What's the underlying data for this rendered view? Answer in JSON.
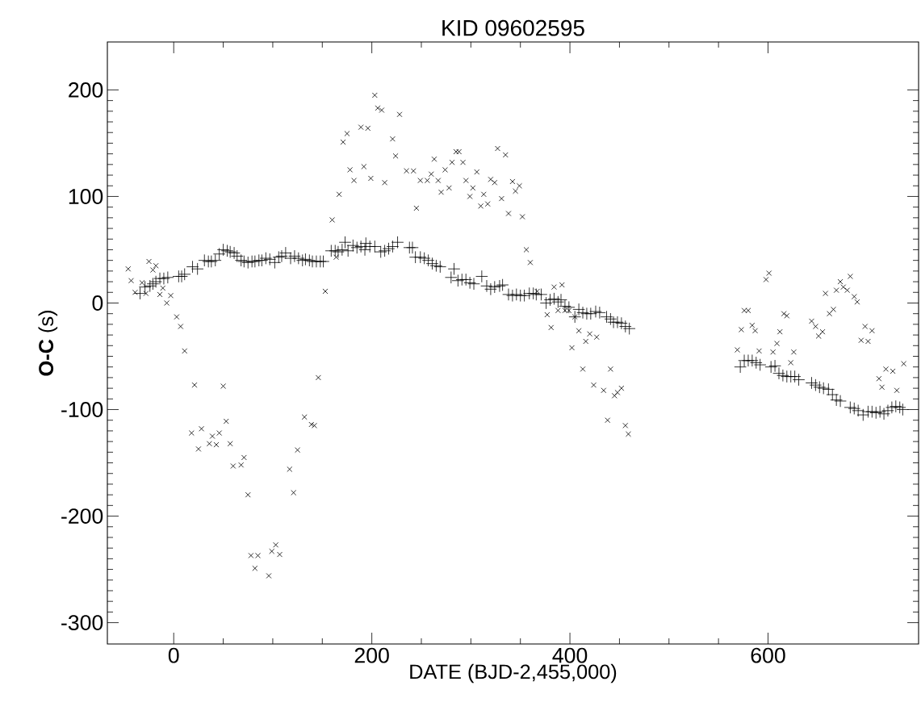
{
  "chart_data": {
    "type": "scatter",
    "title": "KID 09602595",
    "xlabel": "DATE (BJD-2,455,000)",
    "ylabel": "**O-C** (s)",
    "xlim": [
      -67,
      752
    ],
    "ylim": [
      -320,
      245
    ],
    "xticks": [
      0,
      200,
      400,
      600
    ],
    "yticks": [
      -300,
      -200,
      -100,
      0,
      100,
      200
    ],
    "grid": false,
    "series": [
      {
        "color": "#000000",
        "marker": "cross",
        "x": [
          -46,
          -43,
          -39,
          -32,
          -28,
          -25,
          -21,
          -18,
          -14,
          -11,
          -7,
          -3,
          3,
          7,
          11,
          18,
          21,
          25,
          28,
          36,
          39,
          43,
          46,
          50,
          53,
          57,
          60,
          68,
          71,
          75,
          78,
          82,
          85,
          96,
          99,
          103,
          107,
          117,
          121,
          125,
          132,
          139,
          142,
          146,
          153,
          160,
          164,
          167,
          171,
          175,
          178,
          182,
          189,
          192,
          196,
          199,
          203,
          206,
          210,
          213,
          221,
          224,
          228,
          235,
          242,
          245,
          249,
          256,
          260,
          263,
          267,
          270,
          274,
          278,
          281,
          285,
          288,
          292,
          295,
          299,
          302,
          306,
          310,
          313,
          317,
          320,
          324,
          327,
          331,
          335,
          338,
          342,
          345,
          349,
          352,
          356,
          360,
          367,
          377,
          381,
          384,
          388,
          392,
          395,
          399,
          402,
          405,
          409,
          413,
          416,
          420,
          424,
          427,
          434,
          438,
          441,
          445,
          448,
          452,
          456,
          459,
          569,
          573,
          576,
          580,
          584,
          587,
          591,
          598,
          601,
          605,
          609,
          612,
          616,
          619,
          623,
          626,
          644,
          648,
          651,
          655,
          658,
          662,
          666,
          669,
          673,
          676,
          680,
          683,
          687,
          690,
          694,
          698,
          701,
          705,
          712,
          715,
          719,
          726,
          730,
          737
        ],
        "values": [
          32,
          21,
          10,
          19,
          9,
          39,
          31,
          35,
          8,
          14,
          0,
          7,
          -13,
          -22,
          -45,
          -122,
          -77,
          -137,
          -118,
          -132,
          -125,
          -133,
          -122,
          -78,
          -111,
          -132,
          -153,
          -152,
          -145,
          -180,
          -237,
          -249,
          -237,
          -256,
          -233,
          -227,
          -236,
          -156,
          -178,
          -138,
          -107,
          -114,
          -115,
          -70,
          11,
          78,
          43,
          102,
          151,
          159,
          125,
          115,
          165,
          128,
          164,
          117,
          195,
          183,
          181,
          113,
          154,
          138,
          177,
          124,
          124,
          89,
          115,
          115,
          121,
          135,
          115,
          104,
          125,
          108,
          132,
          142,
          142,
          132,
          115,
          100,
          108,
          123,
          91,
          102,
          93,
          116,
          113,
          145,
          98,
          139,
          84,
          114,
          105,
          110,
          81,
          50,
          38,
          11,
          -11,
          -23,
          15,
          -7,
          17,
          -7,
          -7,
          -42,
          -13,
          -26,
          -62,
          -36,
          -29,
          -77,
          -32,
          -82,
          -110,
          -62,
          -87,
          -84,
          -80,
          -115,
          -123,
          -44,
          -25,
          -7,
          -7,
          -21,
          -26,
          -45,
          22,
          28,
          -46,
          -38,
          -27,
          -10,
          -12,
          -56,
          -46,
          -17,
          -22,
          -31,
          -27,
          9,
          -10,
          -6,
          12,
          20,
          15,
          12,
          25,
          6,
          1,
          -35,
          -22,
          -36,
          -26,
          -71,
          -79,
          -62,
          -64,
          -82,
          -57
        ]
      },
      {
        "color": "#000000",
        "marker": "plus",
        "x": [
          -34,
          -29,
          -24,
          -21,
          -18,
          -14,
          -10,
          -6,
          5,
          8,
          11,
          19,
          24,
          31,
          35,
          38,
          42,
          46,
          50,
          54,
          57,
          61,
          64,
          68,
          71,
          75,
          79,
          82,
          86,
          89,
          93,
          97,
          102,
          106,
          109,
          113,
          118,
          122,
          126,
          130,
          133,
          137,
          140,
          144,
          148,
          151,
          159,
          163,
          166,
          170,
          173,
          176,
          181,
          185,
          189,
          193,
          194,
          198,
          203,
          209,
          213,
          217,
          221,
          226,
          238,
          241,
          244,
          249,
          253,
          257,
          261,
          265,
          269,
          280,
          283,
          287,
          291,
          295,
          299,
          303,
          311,
          316,
          320,
          324,
          329,
          332,
          338,
          342,
          346,
          350,
          354,
          359,
          363,
          366,
          371,
          376,
          380,
          384,
          388,
          391,
          395,
          399,
          405,
          409,
          413,
          417,
          421,
          426,
          430,
          437,
          441,
          444,
          448,
          452,
          456,
          460,
          572,
          576,
          580,
          584,
          588,
          592,
          603,
          607,
          611,
          615,
          619,
          623,
          627,
          631,
          644,
          648,
          652,
          656,
          661,
          665,
          669,
          673,
          683,
          687,
          691,
          696,
          701,
          705,
          709,
          713,
          717,
          721,
          725,
          729,
          733,
          736
        ],
        "values": [
          9,
          15,
          16,
          18,
          20,
          23,
          23,
          24,
          25,
          25,
          27,
          34,
          32,
          40,
          39,
          39,
          40,
          46,
          50,
          49,
          48,
          47,
          44,
          40,
          39,
          38,
          39,
          39,
          40,
          40,
          42,
          41,
          38,
          43,
          44,
          47,
          42,
          44,
          42,
          40,
          41,
          40,
          39,
          39,
          39,
          39,
          49,
          49,
          48,
          50,
          57,
          49,
          54,
          52,
          53,
          50,
          56,
          53,
          53,
          48,
          49,
          51,
          53,
          57,
          52,
          52,
          43,
          43,
          42,
          40,
          37,
          35,
          34,
          24,
          32,
          21,
          22,
          22,
          19,
          18,
          25,
          16,
          13,
          15,
          16,
          17,
          8,
          7,
          8,
          7,
          7,
          9,
          9,
          8,
          8,
          0,
          3,
          4,
          1,
          3,
          -3,
          -4,
          -13,
          -6,
          -9,
          -10,
          -10,
          -8,
          -9,
          -13,
          -15,
          -18,
          -18,
          -19,
          -22,
          -24,
          -60,
          -54,
          -54,
          -54,
          -56,
          -58,
          -60,
          -59,
          -66,
          -68,
          -69,
          -69,
          -69,
          -72,
          -75,
          -77,
          -79,
          -80,
          -81,
          -86,
          -91,
          -92,
          -98,
          -99,
          -101,
          -105,
          -102,
          -102,
          -103,
          -102,
          -104,
          -101,
          -98,
          -97,
          -98,
          -100
        ]
      }
    ]
  }
}
